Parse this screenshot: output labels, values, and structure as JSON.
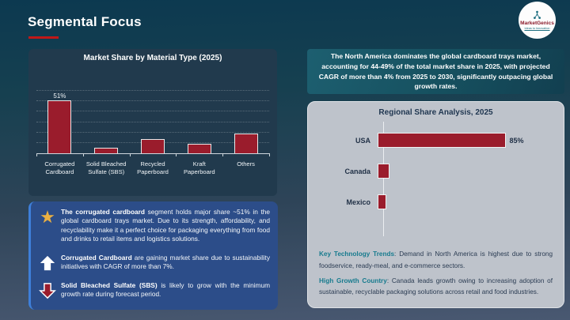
{
  "page": {
    "title": "Segmental Focus"
  },
  "logo": {
    "brand": "MarketGenics",
    "tagline": "Ideas to Innovation"
  },
  "colors": {
    "accent_red": "#C01818",
    "bar_crimson": "#9A1C2C",
    "panel_navy": "#213A4D",
    "insight_blue": "#2C4D89",
    "accent_blue": "#3E7FD9",
    "teal_box": "#16505F",
    "gray_panel": "#BEC3CB",
    "lead_teal": "#177B8E",
    "star_gold": "#EBB042"
  },
  "chart_data": [
    {
      "type": "bar",
      "orientation": "vertical",
      "title": "Market Share by Material Type (2025)",
      "categories": [
        "Corrugated Cardboard",
        "Solid Bleached Sulfate (SBS)",
        "Recycled Paperboard",
        "Kraft Paperboard",
        "Others"
      ],
      "values": [
        51,
        5,
        14,
        9,
        19
      ],
      "data_labels": [
        "51%",
        "",
        "",
        "",
        ""
      ],
      "xlabel": "",
      "ylabel": "",
      "ylim": [
        0,
        60
      ],
      "grid": true,
      "grid_step": 10,
      "legend": "none"
    },
    {
      "type": "bar",
      "orientation": "horizontal",
      "title": "Regional Share Analysis, 2025",
      "categories": [
        "USA",
        "Canada",
        "Mexico"
      ],
      "values": [
        85,
        8,
        6
      ],
      "data_labels": [
        "85%",
        "",
        ""
      ],
      "xlabel": "",
      "ylabel": "",
      "xlim": [
        0,
        100
      ],
      "grid": false,
      "legend": "none"
    }
  ],
  "na_box": {
    "text": "The North America dominates the global cardboard trays market, accounting for 44-49% of the total market share in 2025, with projected CAGR of more than 4% from 2025 to 2030, significantly outpacing global growth rates."
  },
  "insights": [
    {
      "icon": "star",
      "bold": "The corrugated cardboard",
      "text": " segment holds major share ~51% in the global cardboard trays market. Due to its strength, affordability, and recyclability make it a perfect choice for packaging everything from food and drinks to retail items and logistics solutions."
    },
    {
      "icon": "arrow-up",
      "bold": "Corrugated Cardboard",
      "text": " are gaining market share due to sustainability initiatives with CAGR of more than 7%."
    },
    {
      "icon": "arrow-down",
      "bold": "Solid Bleached Sulfate (SBS)",
      "text": " is likely to grow with the minimum growth rate during forecast period."
    }
  ],
  "key_points": [
    {
      "lead": "Key Technology Trends",
      "text": ": Demand in North America is highest due to strong foodservice, ready-meal, and e-commerce sectors."
    },
    {
      "lead": "High Growth Country",
      "text": ": Canada leads growth owing to increasing adoption of sustainable, recyclable packaging solutions across retail and food industries."
    }
  ]
}
